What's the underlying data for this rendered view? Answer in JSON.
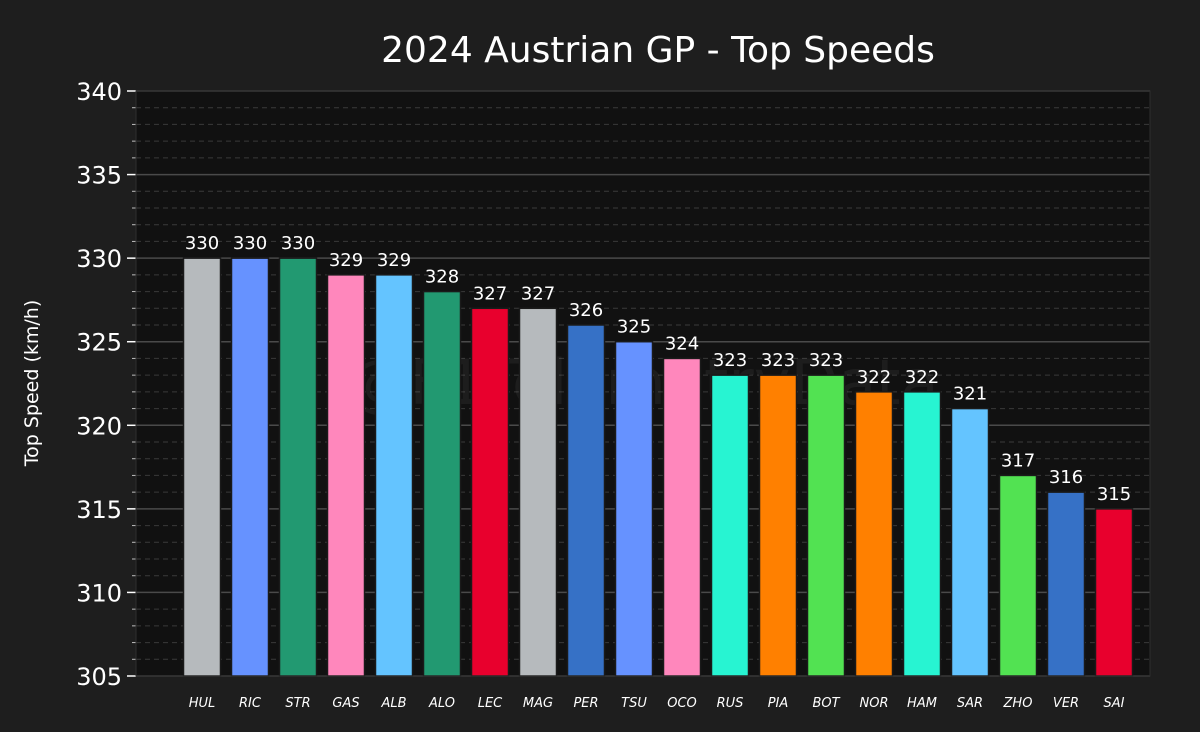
{
  "chart_data": {
    "type": "bar",
    "title": "2024 Austrian GP - Top Speeds",
    "xlabel": "",
    "ylabel": "Top Speed (km/h)",
    "ylim": [
      305,
      340
    ],
    "yticks": [
      305,
      310,
      315,
      320,
      325,
      330,
      335,
      340
    ],
    "grid": true,
    "watermark": "@F1TelemetryData",
    "categories": [
      "HUL",
      "RIC",
      "STR",
      "GAS",
      "ALB",
      "ALO",
      "LEC",
      "MAG",
      "PER",
      "TSU",
      "OCO",
      "RUS",
      "PIA",
      "BOT",
      "NOR",
      "HAM",
      "SAR",
      "ZHO",
      "VER",
      "SAI"
    ],
    "values": [
      330,
      330,
      330,
      329,
      329,
      328,
      327,
      327,
      326,
      325,
      324,
      323,
      323,
      323,
      322,
      322,
      321,
      317,
      316,
      315
    ],
    "colors": [
      "#b6babd",
      "#6692ff",
      "#229971",
      "#ff87bc",
      "#64c4ff",
      "#229971",
      "#e8002d",
      "#b6babd",
      "#3671c6",
      "#6692ff",
      "#ff87bc",
      "#27f4d2",
      "#ff8000",
      "#52e252",
      "#ff8000",
      "#27f4d2",
      "#64c4ff",
      "#52e252",
      "#3671c6",
      "#e8002d"
    ]
  }
}
